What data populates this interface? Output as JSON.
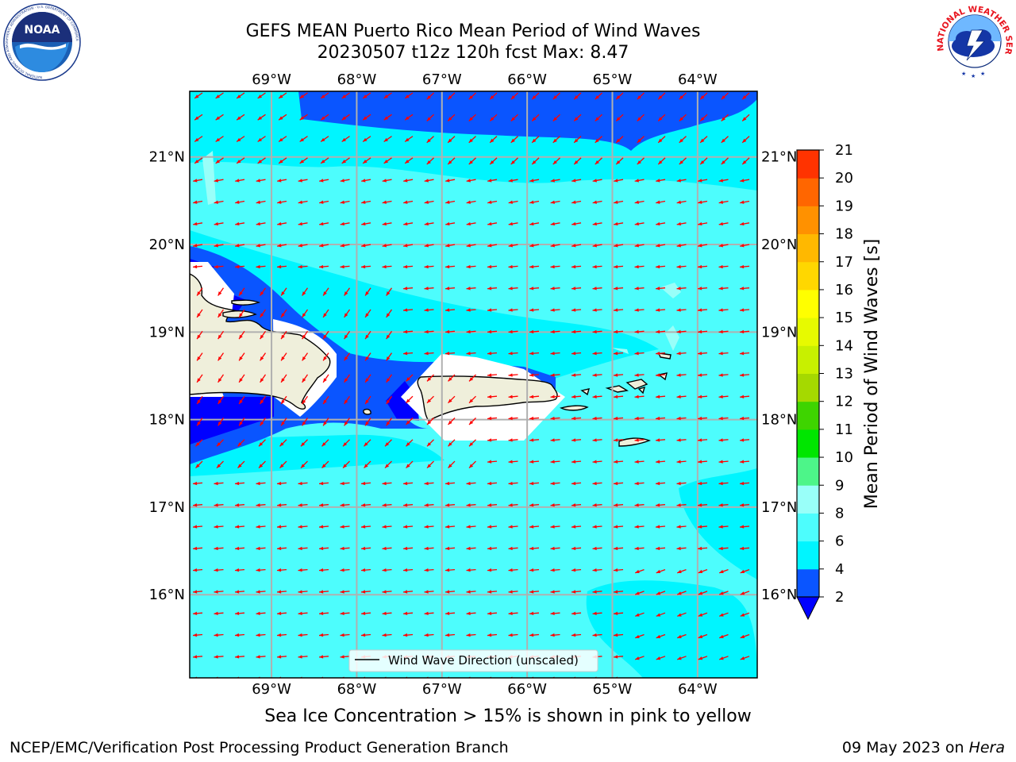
{
  "header": {
    "title_line1": "GEFS MEAN Puerto Rico Mean Period of Wind Waves",
    "title_line2": "20230507 t12z 120h fcst   Max: 8.47"
  },
  "logos": {
    "left": {
      "text": "NOAA",
      "icon": "noaa-logo-icon",
      "ring_text": "NATIONAL OCEANIC AND ATMOSPHERIC ADMINISTRATION · U.S. DEPARTMENT OF COMMERCE"
    },
    "right": {
      "icon": "nws-logo-icon",
      "ring_text": "NATIONAL WEATHER SERVICE"
    }
  },
  "map": {
    "lon_ticks": [
      "69°W",
      "68°W",
      "67°W",
      "66°W",
      "65°W",
      "64°W"
    ],
    "lat_ticks": [
      "21°N",
      "20°N",
      "19°N",
      "18°N",
      "17°N",
      "16°N"
    ],
    "lon_values": [
      -69,
      -68,
      -67,
      -66,
      -65,
      -64
    ],
    "lat_values": [
      21,
      20,
      19,
      18,
      17,
      16
    ],
    "lon_range": [
      -69.96,
      -63.3
    ],
    "lat_range": [
      15.05,
      21.75
    ],
    "legend_label": "Wind Wave Direction (unscaled)",
    "arrow_color": "#ff0000",
    "land_color": "#efefdb",
    "grid": true
  },
  "colorbar": {
    "label": "Mean Period of Wind Waves [s]",
    "ticks": [
      "2",
      "4",
      "6",
      "8",
      "9",
      "10",
      "11",
      "12",
      "13",
      "14",
      "15",
      "16",
      "17",
      "18",
      "19",
      "20",
      "21"
    ],
    "levels": [
      2,
      4,
      6,
      8,
      9,
      10,
      11,
      12,
      13,
      14,
      15,
      16,
      17,
      18,
      19,
      20,
      21
    ],
    "colors": [
      "#0a55ff",
      "#00f5ff",
      "#4dfdfd",
      "#99fff9",
      "#4df589",
      "#00e600",
      "#3ed400",
      "#a5d900",
      "#c8f000",
      "#e7fa00",
      "#ffff00",
      "#ffd700",
      "#ffb800",
      "#ff9100",
      "#ff6600",
      "#ff3300"
    ],
    "under_color": "#0000ff"
  },
  "notes": {
    "sea_ice": "Sea Ice Concentration > 15% is shown in pink to yellow"
  },
  "footer": {
    "left": "NCEP/EMC/Verification Post Processing Product Generation Branch",
    "date": "09 May 2023 on",
    "host": "Hera"
  }
}
